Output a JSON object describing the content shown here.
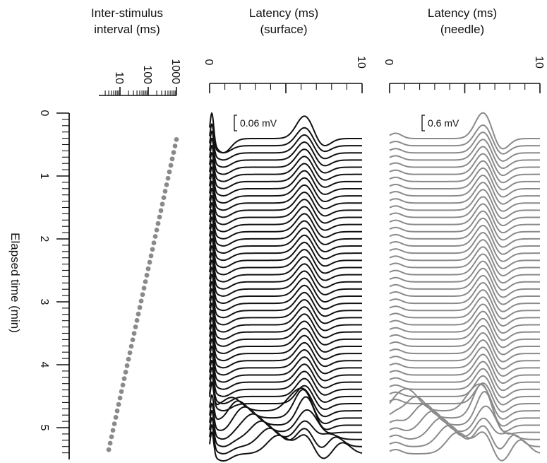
{
  "chart_data": [
    {
      "type": "scatter",
      "name": "Inter-stimulus interval",
      "title": [
        "Inter-stimulus",
        "interval (ms)"
      ],
      "x_scale": "log",
      "x_tick_labels": [
        "10",
        "100",
        "1000"
      ],
      "y_axis_label": "Elapsed time (min)",
      "y_tick_labels": [
        "0",
        "1",
        "2",
        "3",
        "4",
        "5"
      ],
      "y_range": [
        0,
        5.4
      ],
      "num_points": 49,
      "points": {
        "elapsed_min_first": 0.42,
        "elapsed_min_last": 5.35,
        "isi_ms_first": 1000,
        "isi_ms_last": 4
      },
      "marker_color": "#8a8a8a"
    },
    {
      "type": "line",
      "name": "surface",
      "title": [
        "Latency (ms)",
        "(surface)"
      ],
      "x_tick_labels": [
        "0",
        "10"
      ],
      "x_range": [
        0,
        10
      ],
      "scale_bar_label": "0.06 mV",
      "trace_color": "#111111",
      "num_traces": 45
    },
    {
      "type": "line",
      "name": "needle",
      "title": [
        "Latency (ms)",
        "(needle)"
      ],
      "x_tick_labels": [
        "0",
        "10"
      ],
      "x_range": [
        0,
        10
      ],
      "scale_bar_label": "0.6 mV",
      "trace_color": "#8a8a8a",
      "num_traces": 45
    }
  ]
}
